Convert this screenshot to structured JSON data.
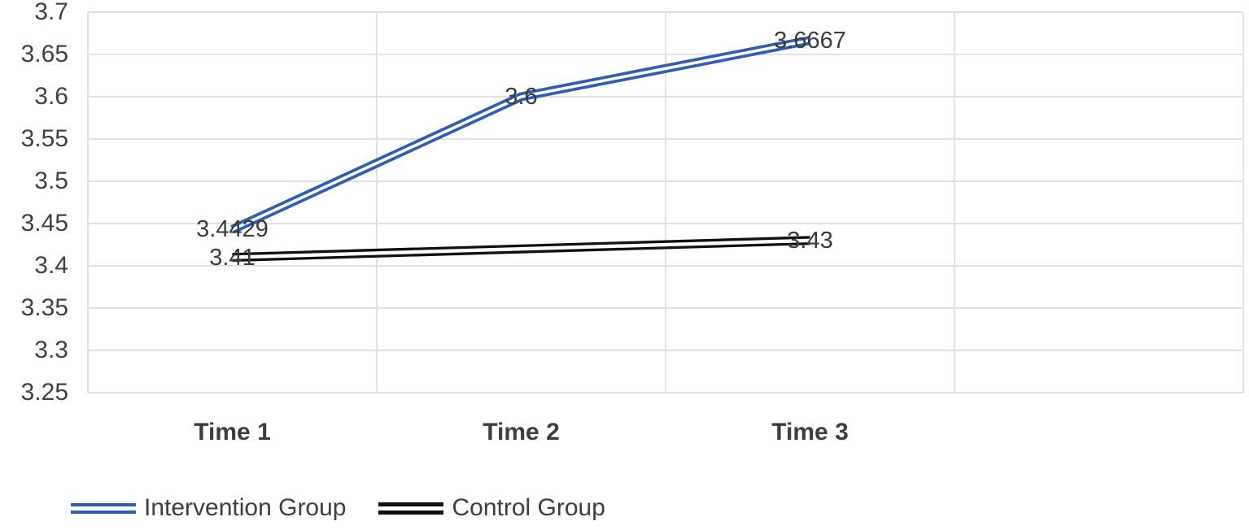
{
  "chart_data": {
    "type": "line",
    "title": "",
    "categories": [
      "Time 1",
      "Time 2",
      "Time 3"
    ],
    "series": [
      {
        "name": "Intervention Group",
        "values": [
          3.4429,
          3.6,
          3.6667
        ],
        "point_labels": [
          "3.4429",
          "3.6",
          "3.6667"
        ],
        "color": "#2f5cb7",
        "line_style": "double"
      },
      {
        "name": "Control Group",
        "values": [
          3.41,
          3.42,
          3.43
        ],
        "point_labels": [
          "3.41",
          null,
          "3.43"
        ],
        "color": "#101010",
        "line_style": "double"
      }
    ],
    "y_axis": {
      "min": 3.25,
      "max": 3.7,
      "step": 0.05,
      "ticks_top_to_bottom": [
        "3.7",
        "3.65",
        "3.6",
        "3.55",
        "3.5",
        "3.45",
        "3.4",
        "3.35",
        "3.3",
        "3.25"
      ]
    },
    "x_axis": {
      "label": ""
    },
    "grid": true,
    "gridline_color": "#e1e1e1",
    "legend_position": "bottom-left",
    "background_color": "#ffffff"
  }
}
